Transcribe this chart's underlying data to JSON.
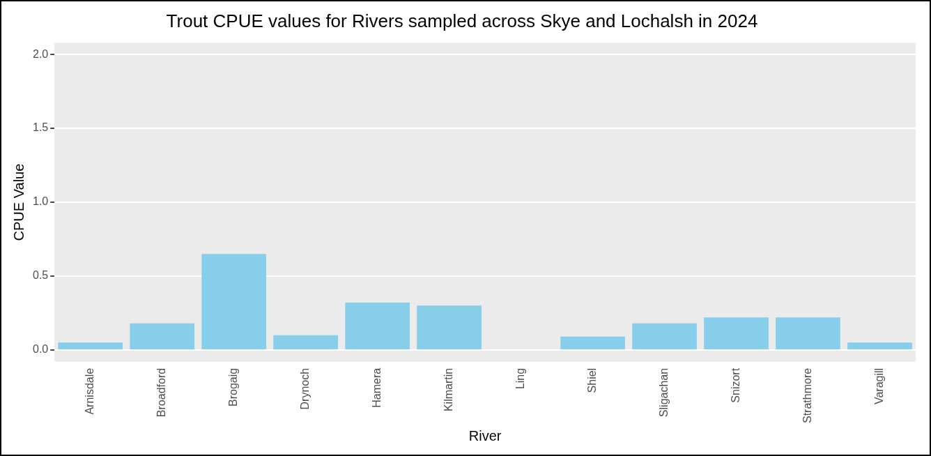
{
  "chart_data": {
    "type": "bar",
    "title": "Trout CPUE values for Rivers sampled across Skye and Lochalsh in 2024",
    "xlabel": "River",
    "ylabel": "CPUE Value",
    "categories": [
      "Arnisdale",
      "Broadford",
      "Brogaig",
      "Drynoch",
      "Hamera",
      "Kilmartin",
      "Ling",
      "Shiel",
      "Sligachan",
      "Snizort",
      "Strathmore",
      "Varagill"
    ],
    "values": [
      0.05,
      0.18,
      0.65,
      0.1,
      0.32,
      0.3,
      0,
      0.09,
      0.18,
      0.22,
      0.22,
      0.05
    ],
    "color": "#87ceeb",
    "ylim": [
      -0.08,
      2.08
    ],
    "yticks": [
      {
        "value": 0,
        "label": "0.0"
      },
      {
        "value": 0.5,
        "label": "0.5"
      },
      {
        "value": 1,
        "label": "1.0"
      },
      {
        "value": 1.5,
        "label": "1.5"
      },
      {
        "value": 2,
        "label": "2.0"
      }
    ],
    "grid": "y",
    "legend": false
  }
}
